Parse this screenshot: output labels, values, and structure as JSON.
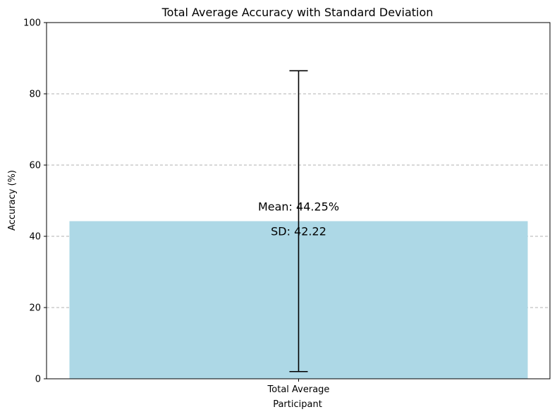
{
  "chart_data": {
    "type": "bar",
    "title": "Total Average Accuracy with Standard Deviation",
    "xlabel": "Participant",
    "ylabel": "Accuracy (%)",
    "categories": [
      "Total Average"
    ],
    "values": [
      44.25
    ],
    "error": [
      42.22
    ],
    "ylim": [
      0,
      100
    ],
    "yticks": [
      0,
      20,
      40,
      60,
      80,
      100
    ],
    "grid": "y-dashed",
    "bar_color": "#add8e6",
    "annotations": {
      "mean_label": "Mean: 44.25%",
      "sd_label": "SD: 42.22"
    }
  }
}
